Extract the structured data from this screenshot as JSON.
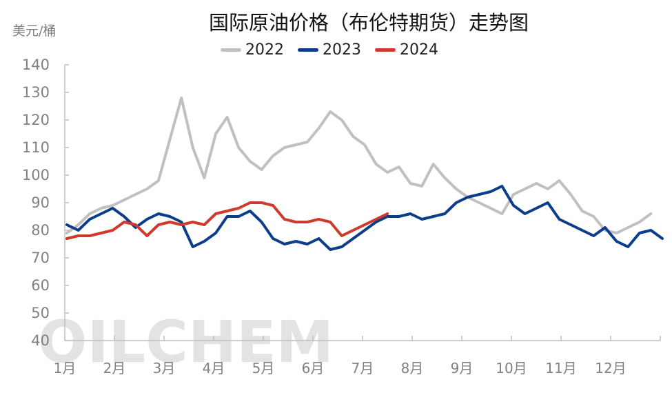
{
  "title": "国际原油价格（布伦特期货）走势图",
  "unit": "美元/桶",
  "watermark": "OILCHEM",
  "legend": [
    {
      "label": "2022",
      "color": "#c0c0c0"
    },
    {
      "label": "2023",
      "color": "#0b3d8c"
    },
    {
      "label": "2024",
      "color": "#d03a2c"
    }
  ],
  "chart_data": {
    "type": "line",
    "title": "国际原油价格（布伦特期货）走势图",
    "xlabel": "",
    "ylabel": "美元/桶",
    "ylim": [
      40,
      140
    ],
    "yticks": [
      40,
      50,
      60,
      70,
      80,
      90,
      100,
      110,
      120,
      130,
      140
    ],
    "xticks": [
      "1月",
      "2月",
      "3月",
      "4月",
      "5月",
      "6月",
      "7月",
      "8月",
      "9月",
      "10月",
      "11月",
      "12月"
    ],
    "grid": false,
    "legend_position": "top",
    "x_unit": "week_of_year",
    "series": [
      {
        "name": "2022",
        "color": "#c0c0c0",
        "values": [
          79,
          82,
          86,
          88,
          89,
          91,
          93,
          95,
          98,
          113,
          128,
          110,
          99,
          115,
          121,
          110,
          105,
          102,
          107,
          110,
          111,
          112,
          117,
          123,
          120,
          114,
          111,
          104,
          101,
          103,
          97,
          96,
          104,
          99,
          95,
          92,
          90,
          88,
          86,
          93,
          95,
          97,
          95,
          98,
          93,
          87,
          85,
          80,
          79,
          81,
          83,
          86
        ]
      },
      {
        "name": "2023",
        "color": "#0b3d8c",
        "values": [
          82,
          80,
          84,
          86,
          88,
          85,
          81,
          84,
          86,
          85,
          83,
          74,
          76,
          79,
          85,
          85,
          87,
          83,
          77,
          75,
          76,
          75,
          77,
          73,
          74,
          77,
          80,
          83,
          85,
          85,
          86,
          84,
          85,
          86,
          90,
          92,
          93,
          94,
          96,
          89,
          86,
          88,
          90,
          84,
          82,
          80,
          78,
          81,
          76,
          74,
          79,
          80,
          77
        ]
      },
      {
        "name": "2024",
        "color": "#d03a2c",
        "values": [
          77,
          78,
          78,
          79,
          80,
          83,
          82,
          78,
          82,
          83,
          82,
          83,
          82,
          86,
          87,
          88,
          90,
          90,
          89,
          84,
          83,
          83,
          84,
          83,
          78,
          80,
          82,
          84,
          86
        ]
      }
    ]
  }
}
